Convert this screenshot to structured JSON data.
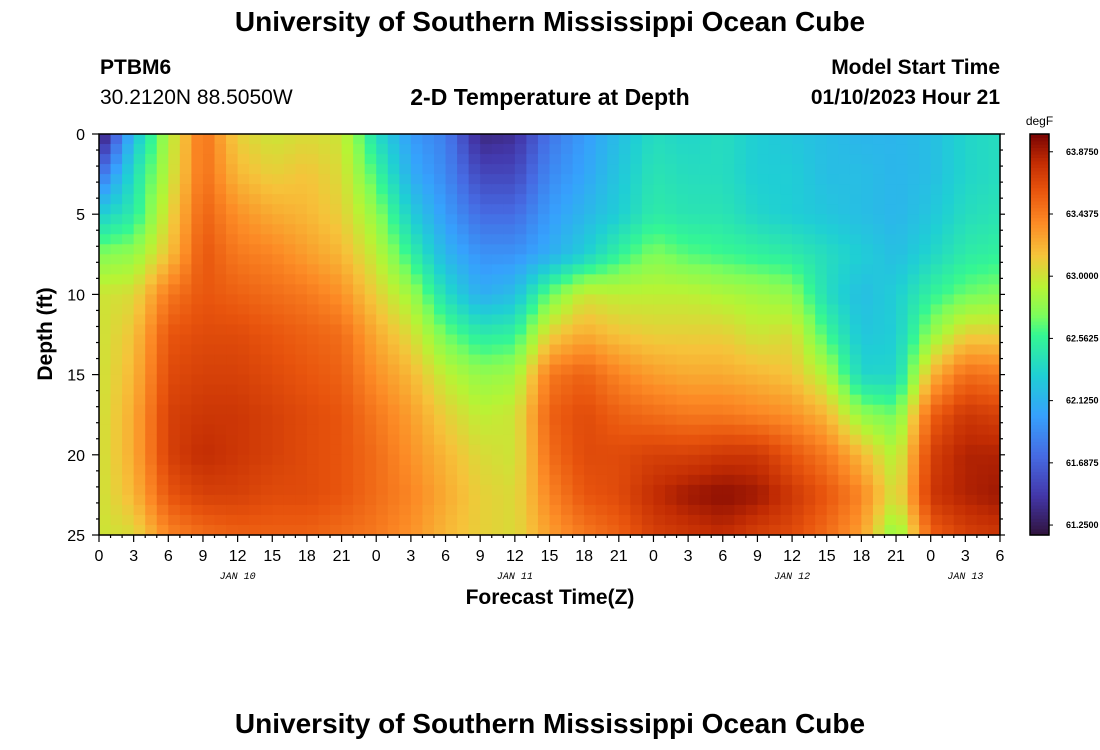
{
  "header": {
    "title": "University of Southern Mississippi Ocean Cube",
    "station_id": "PTBM6",
    "coordinates": "30.2120N  88.5050W",
    "plot_title": "2-D Temperature at Depth",
    "model_start_label": "Model Start Time",
    "model_start_value": "01/10/2023 Hour 21"
  },
  "footer": {
    "title": "University of Southern Mississippi Ocean Cube"
  },
  "chart_data": {
    "type": "heatmap",
    "title": "2-D Temperature at Depth",
    "xlabel": "Forecast Time(Z)",
    "ylabel": "Depth (ft)",
    "x_ticks": [
      "0",
      "3",
      "6",
      "9",
      "12",
      "15",
      "18",
      "21",
      "0",
      "3",
      "6",
      "9",
      "12",
      "15",
      "18",
      "21",
      "0",
      "3",
      "6",
      "9",
      "12",
      "15",
      "18",
      "21",
      "0",
      "3",
      "6"
    ],
    "x_range_hours": [
      0,
      78
    ],
    "date_labels": [
      {
        "text": "JAN 10",
        "hour": 12
      },
      {
        "text": "JAN 11",
        "hour": 36
      },
      {
        "text": "JAN 12",
        "hour": 60
      },
      {
        "text": "JAN 13",
        "hour": 75
      }
    ],
    "y_ticks": [
      "0",
      "5",
      "10",
      "15",
      "20",
      "25"
    ],
    "y_range_ft": [
      0,
      25
    ],
    "colorbar": {
      "unit": "degF",
      "min": 61.18,
      "max": 64.0,
      "labels": [
        "63.8750",
        "63.4375",
        "63.0000",
        "62.5625",
        "62.1250",
        "61.6875",
        "61.2500"
      ],
      "label_values": [
        63.875,
        63.4375,
        63.0,
        62.5625,
        62.125,
        61.6875,
        61.25
      ]
    },
    "profile_hours": [
      0,
      3,
      6,
      9,
      12,
      15,
      18,
      21,
      24,
      27,
      30,
      33,
      36,
      39,
      42,
      45,
      48,
      51,
      54,
      57,
      60,
      63,
      66,
      69,
      72,
      75,
      78
    ],
    "profile_depths_ft": [
      0,
      2.5,
      5,
      7.5,
      10,
      12.5,
      15,
      17.5,
      20,
      22.5,
      25
    ],
    "profiles_degF": [
      [
        61.2,
        61.75,
        62.3,
        62.75,
        63.0,
        63.0,
        63.0,
        63.0,
        63.0,
        63.0,
        63.0
      ],
      [
        62.2,
        62.4,
        62.5,
        62.8,
        63.05,
        63.15,
        63.2,
        63.25,
        63.25,
        63.2,
        63.05
      ],
      [
        62.9,
        62.95,
        63.05,
        63.15,
        63.45,
        63.6,
        63.65,
        63.7,
        63.7,
        63.6,
        63.4
      ],
      [
        63.5,
        63.5,
        63.55,
        63.6,
        63.6,
        63.65,
        63.7,
        63.75,
        63.8,
        63.7,
        63.5
      ],
      [
        63.1,
        63.2,
        63.35,
        63.45,
        63.55,
        63.65,
        63.7,
        63.75,
        63.75,
        63.7,
        63.55
      ],
      [
        63.0,
        63.1,
        63.25,
        63.4,
        63.5,
        63.6,
        63.65,
        63.7,
        63.7,
        63.65,
        63.55
      ],
      [
        63.05,
        63.15,
        63.2,
        63.3,
        63.45,
        63.55,
        63.6,
        63.65,
        63.65,
        63.65,
        63.55
      ],
      [
        63.0,
        63.05,
        63.1,
        63.2,
        63.35,
        63.5,
        63.55,
        63.6,
        63.6,
        63.6,
        63.5
      ],
      [
        62.4,
        62.6,
        62.8,
        62.95,
        63.1,
        63.25,
        63.35,
        63.45,
        63.5,
        63.5,
        63.45
      ],
      [
        62.0,
        62.1,
        62.3,
        62.55,
        62.85,
        63.05,
        63.2,
        63.3,
        63.35,
        63.4,
        63.35
      ],
      [
        61.85,
        61.9,
        62.0,
        62.15,
        62.4,
        62.7,
        62.95,
        63.1,
        63.2,
        63.25,
        63.2
      ],
      [
        61.35,
        61.55,
        61.75,
        61.95,
        62.1,
        62.5,
        62.8,
        62.95,
        63.05,
        63.1,
        63.1
      ],
      [
        61.4,
        61.55,
        61.75,
        61.95,
        62.2,
        62.55,
        62.85,
        63.0,
        63.0,
        63.05,
        63.05
      ],
      [
        61.8,
        61.9,
        62.0,
        62.1,
        62.7,
        63.1,
        63.45,
        63.55,
        63.5,
        63.4,
        63.3
      ],
      [
        62.0,
        62.05,
        62.15,
        62.3,
        63.0,
        63.25,
        63.55,
        63.65,
        63.65,
        63.6,
        63.45
      ],
      [
        62.2,
        62.25,
        62.3,
        62.55,
        62.95,
        63.15,
        63.4,
        63.55,
        63.65,
        63.65,
        63.55
      ],
      [
        62.4,
        62.45,
        62.5,
        62.75,
        62.95,
        63.1,
        63.3,
        63.5,
        63.7,
        63.8,
        63.7
      ],
      [
        62.35,
        62.4,
        62.45,
        62.65,
        62.95,
        63.1,
        63.25,
        63.45,
        63.7,
        63.9,
        63.75
      ],
      [
        62.4,
        62.4,
        62.45,
        62.6,
        62.9,
        63.1,
        63.25,
        63.45,
        63.75,
        63.95,
        63.8
      ],
      [
        62.3,
        62.3,
        62.35,
        62.55,
        62.85,
        63.0,
        63.2,
        63.4,
        63.75,
        63.9,
        63.7
      ],
      [
        62.25,
        62.3,
        62.3,
        62.5,
        62.8,
        63.05,
        63.15,
        63.35,
        63.6,
        63.75,
        63.65
      ],
      [
        62.2,
        62.2,
        62.25,
        62.4,
        62.4,
        62.6,
        62.9,
        63.2,
        63.45,
        63.6,
        63.5
      ],
      [
        62.15,
        62.2,
        62.2,
        62.3,
        62.2,
        62.25,
        62.35,
        62.8,
        63.2,
        63.4,
        63.3
      ],
      [
        62.15,
        62.15,
        62.15,
        62.2,
        62.3,
        62.3,
        62.35,
        62.7,
        62.9,
        63.0,
        62.75
      ],
      [
        62.2,
        62.2,
        62.25,
        62.35,
        62.55,
        62.8,
        63.2,
        63.55,
        63.7,
        63.75,
        63.55
      ],
      [
        62.35,
        62.35,
        62.4,
        62.5,
        62.7,
        63.1,
        63.5,
        63.75,
        63.85,
        63.85,
        63.7
      ],
      [
        62.4,
        62.4,
        62.45,
        62.55,
        62.75,
        63.1,
        63.45,
        63.7,
        63.85,
        63.9,
        63.75
      ]
    ]
  }
}
